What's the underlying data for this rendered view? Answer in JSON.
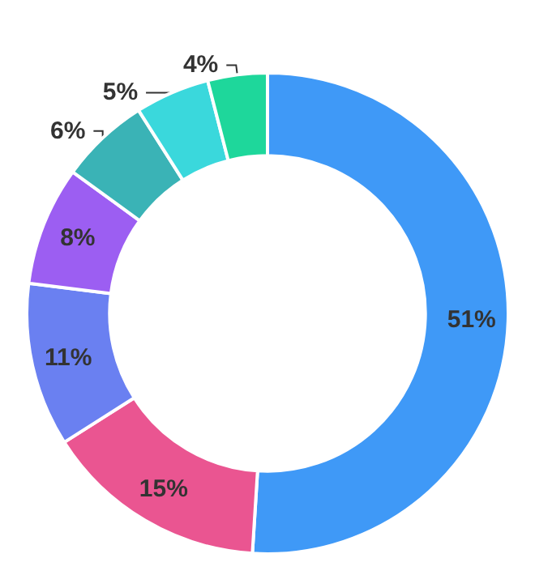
{
  "chart_data": {
    "type": "donut",
    "categories": [
      null,
      null,
      null,
      null,
      null,
      null,
      null
    ],
    "values": [
      51,
      15,
      11,
      8,
      6,
      5,
      4
    ],
    "value_labels": [
      "51%",
      "15%",
      "11%",
      "8%",
      "6%",
      "5%",
      "4%"
    ],
    "colors": [
      "#3f99f7",
      "#ea5591",
      "#6a80f1",
      "#9c5ef2",
      "#3ab3b6",
      "#3ad8dc",
      "#1ed79b"
    ]
  }
}
